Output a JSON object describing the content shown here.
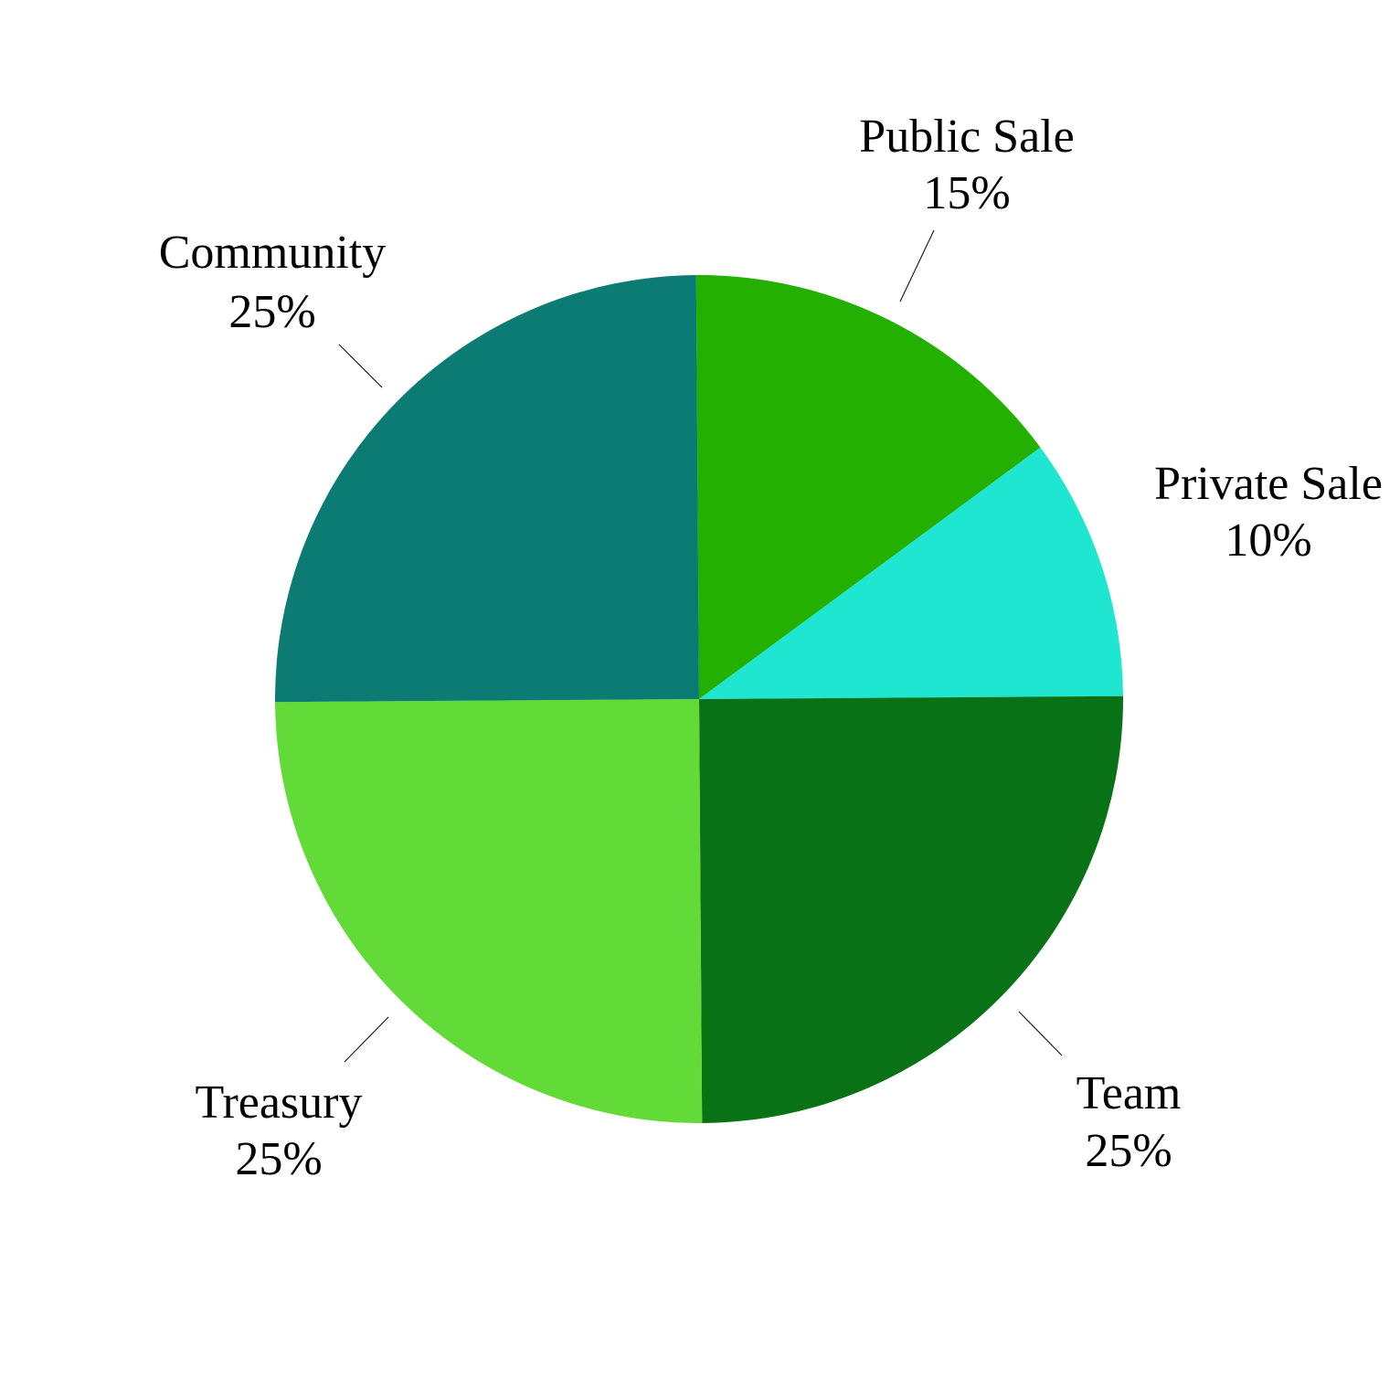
{
  "chart_data": {
    "type": "pie",
    "title": "",
    "legend": "none",
    "slices": [
      {
        "label": "Public Sale",
        "value": 15,
        "pct_label": "15%",
        "color": "#23b000"
      },
      {
        "label": "Private Sale",
        "value": 10,
        "pct_label": "10%",
        "color": "#1ee6d0"
      },
      {
        "label": "Team",
        "value": 25,
        "pct_label": "25%",
        "color": "#0a7216"
      },
      {
        "label": "Treasury",
        "value": 25,
        "pct_label": "25%",
        "color": "#62da37"
      },
      {
        "label": "Community",
        "value": 25,
        "pct_label": "25%",
        "color": "#0b7b74"
      }
    ]
  }
}
